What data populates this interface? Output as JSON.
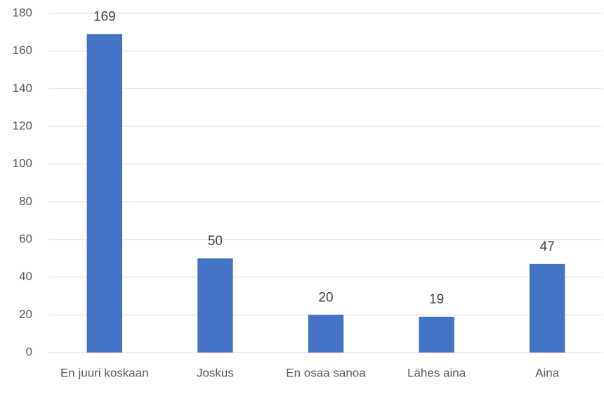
{
  "chart_data": {
    "type": "bar",
    "categories": [
      "En juuri koskaan",
      "Joskus",
      "En osaa sanoa",
      "Lähes aina",
      "Aina"
    ],
    "values": [
      169,
      50,
      20,
      19,
      47
    ],
    "color": "#4472c4",
    "ylim": [
      0,
      180
    ],
    "yticks": [
      0,
      20,
      40,
      60,
      80,
      100,
      120,
      140,
      160,
      180
    ],
    "grid": true
  }
}
